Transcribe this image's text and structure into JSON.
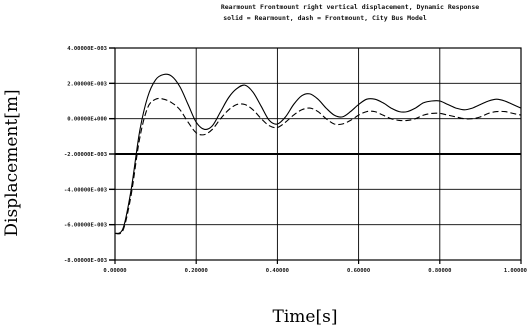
{
  "chart_data": {
    "type": "line",
    "title": "Rearmount Frontmount right vertical displacement, Dynamic Response",
    "subtitle": "solid = Rearmount, dash = Frontmount, City Bus Model",
    "xlabel": "Time[s]",
    "ylabel": "Displacement[m]",
    "xlim": [
      0,
      1.0
    ],
    "ylim": [
      -0.008,
      0.004
    ],
    "grid": true,
    "x_ticks": [
      0,
      0.2,
      0.4,
      0.6,
      0.8,
      1.0
    ],
    "x_tick_labels": [
      "0.00000",
      "0.20000",
      "0.40000",
      "0.60000",
      "0.80000",
      "1.00000"
    ],
    "y_ticks": [
      0.004,
      0.002,
      0.0,
      -0.002,
      -0.004,
      -0.006,
      -0.008
    ],
    "y_tick_labels": [
      "4.00000E-003",
      "2.00000E-003",
      "0.00000E+000",
      "-2.00000E-003",
      "-4.00000E-003",
      "-6.00000E-003",
      "-8.00000E-003"
    ],
    "series": [
      {
        "name": "Rearmount",
        "style": "solid",
        "x": [
          0.0,
          0.02,
          0.04,
          0.06,
          0.08,
          0.1,
          0.12,
          0.14,
          0.16,
          0.18,
          0.2,
          0.22,
          0.24,
          0.26,
          0.28,
          0.3,
          0.32,
          0.34,
          0.36,
          0.38,
          0.4,
          0.42,
          0.44,
          0.46,
          0.48,
          0.5,
          0.52,
          0.54,
          0.56,
          0.58,
          0.6,
          0.62,
          0.64,
          0.66,
          0.68,
          0.7,
          0.72,
          0.74,
          0.76,
          0.78,
          0.8,
          0.82,
          0.84,
          0.86,
          0.88,
          0.9,
          0.92,
          0.94,
          0.96,
          0.98,
          1.0
        ],
        "y": [
          -0.0065,
          -0.0062,
          -0.004,
          -0.0008,
          0.0012,
          0.0022,
          0.0025,
          0.0024,
          0.0018,
          0.0008,
          -0.0002,
          -0.0006,
          -0.0004,
          0.0004,
          0.0012,
          0.0017,
          0.0019,
          0.0015,
          0.0007,
          -0.0001,
          -0.0003,
          0.0001,
          0.0008,
          0.0013,
          0.0014,
          0.0011,
          0.0006,
          0.0002,
          0.0001,
          0.0004,
          0.0008,
          0.0011,
          0.0011,
          0.0009,
          0.0006,
          0.0004,
          0.0004,
          0.0006,
          0.0009,
          0.001,
          0.001,
          0.0008,
          0.0006,
          0.0005,
          0.0006,
          0.0008,
          0.001,
          0.0011,
          0.001,
          0.0008,
          0.0006
        ]
      },
      {
        "name": "Frontmount",
        "style": "dash",
        "x": [
          0.0,
          0.02,
          0.04,
          0.06,
          0.08,
          0.1,
          0.12,
          0.14,
          0.16,
          0.18,
          0.2,
          0.22,
          0.24,
          0.26,
          0.28,
          0.3,
          0.32,
          0.34,
          0.36,
          0.38,
          0.4,
          0.42,
          0.44,
          0.46,
          0.48,
          0.5,
          0.52,
          0.54,
          0.56,
          0.58,
          0.6,
          0.62,
          0.64,
          0.66,
          0.68,
          0.7,
          0.72,
          0.74,
          0.76,
          0.78,
          0.8,
          0.82,
          0.84,
          0.86,
          0.88,
          0.9,
          0.92,
          0.94,
          0.96,
          0.98,
          1.0
        ],
        "y": [
          -0.0065,
          -0.0063,
          -0.0043,
          -0.0012,
          0.0006,
          0.0011,
          0.0011,
          0.0009,
          0.0005,
          -0.0002,
          -0.0008,
          -0.0009,
          -0.0006,
          0.0,
          0.0005,
          0.0008,
          0.0008,
          0.0005,
          0.0,
          -0.0004,
          -0.0005,
          -0.0002,
          0.0002,
          0.0005,
          0.0006,
          0.0004,
          0.0,
          -0.0003,
          -0.0003,
          -0.0001,
          0.0002,
          0.0004,
          0.0004,
          0.0002,
          0.0,
          -0.0001,
          -0.0001,
          0.0,
          0.0002,
          0.0003,
          0.0003,
          0.0002,
          0.0001,
          0.0,
          0.0,
          0.0001,
          0.0003,
          0.0004,
          0.0004,
          0.0003,
          0.0002
        ]
      }
    ]
  }
}
